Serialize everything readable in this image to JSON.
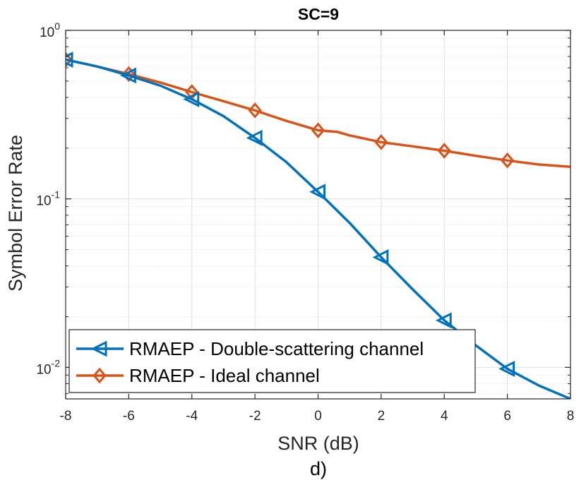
{
  "chart_data": {
    "type": "line",
    "title": "SC=9",
    "xlabel": "SNR (dB)",
    "ylabel": "Symbol Error Rate",
    "caption": "d)",
    "xlim": [
      -8,
      8
    ],
    "ylim": [
      0.0065,
      1
    ],
    "yscale": "log",
    "xticks": [
      -8,
      -6,
      -4,
      -2,
      0,
      2,
      4,
      6,
      8
    ],
    "xtick_labels": [
      "-8",
      "-6",
      "-4",
      "-2",
      "0",
      "2",
      "4",
      "6",
      "8"
    ],
    "yticks": [
      {
        "value": 1,
        "base": "10",
        "exp": "0"
      },
      {
        "value": 0.1,
        "base": "10",
        "exp": "-1"
      },
      {
        "value": 0.01,
        "base": "10",
        "exp": "-2"
      }
    ],
    "grid": true,
    "legend_position": "bottom-left",
    "series": [
      {
        "name": "RMAEP - Double-scattering channel",
        "color": "#0072bd",
        "marker": "triangle-left",
        "x": [
          -8,
          -7,
          -6,
          -5,
          -4,
          -3,
          -2,
          -1,
          0,
          1,
          2,
          3,
          4,
          5,
          6,
          7,
          8
        ],
        "y": [
          0.67,
          0.61,
          0.54,
          0.47,
          0.39,
          0.31,
          0.23,
          0.165,
          0.11,
          0.072,
          0.045,
          0.029,
          0.019,
          0.0135,
          0.0098,
          0.0078,
          0.0065
        ],
        "marker_x": [
          -8,
          -6,
          -4,
          -2,
          0,
          2,
          4,
          6
        ]
      },
      {
        "name": "RMAEP - Ideal channel",
        "color": "#d95319",
        "marker": "diamond",
        "x": [
          -8,
          -7,
          -6,
          -5,
          -4,
          -3,
          -2,
          -1,
          0,
          0.6,
          1,
          2,
          3,
          4,
          5,
          6,
          7,
          8
        ],
        "y": [
          0.67,
          0.61,
          0.55,
          0.49,
          0.43,
          0.38,
          0.335,
          0.29,
          0.255,
          0.25,
          0.238,
          0.217,
          0.205,
          0.193,
          0.18,
          0.169,
          0.16,
          0.155
        ],
        "marker_x": [
          -8,
          -6,
          -4,
          -2,
          0,
          2,
          4,
          6
        ]
      }
    ]
  }
}
